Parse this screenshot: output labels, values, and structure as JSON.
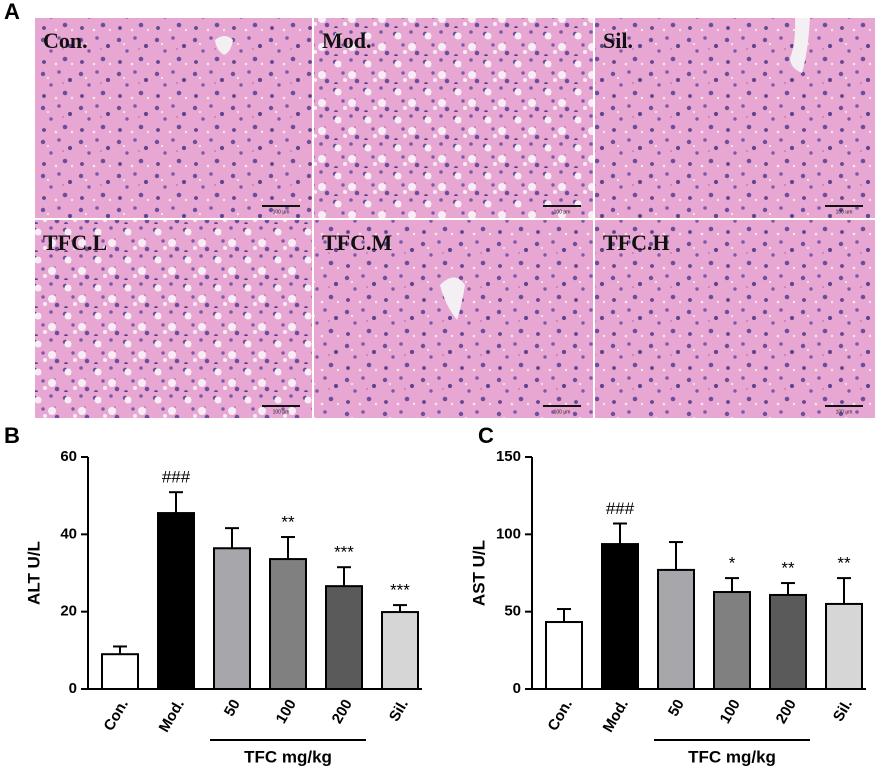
{
  "panel_a": {
    "label": "A",
    "scale_bar": "100 μm",
    "images": [
      "Con.",
      "Mod.",
      "Sil.",
      "TFC.L",
      "TFC.M",
      "TFC.H"
    ]
  },
  "chart_data": [
    {
      "type": "bar",
      "label": "B",
      "ylabel": "ALT  U/L",
      "categories": [
        "Con.",
        "Mod.",
        "50",
        "100",
        "200",
        "Sil."
      ],
      "values": [
        9,
        45.5,
        36.4,
        33.6,
        26.6,
        19.9
      ],
      "errors": [
        2,
        5.4,
        5.2,
        5.7,
        4.9,
        1.8
      ],
      "annotations": [
        null,
        "###",
        null,
        "**",
        "***",
        "***"
      ],
      "colors": [
        "#ffffff",
        "#000000",
        "#a6a6ab",
        "#808080",
        "#5a5a5a",
        "#d6d6d6"
      ],
      "ylim": [
        0,
        60
      ],
      "yticks": [
        0,
        20,
        40,
        60
      ],
      "group_label": "TFC mg/kg"
    },
    {
      "type": "bar",
      "label": "C",
      "ylabel": "AST  U/L",
      "categories": [
        "Con.",
        "Mod.",
        "50",
        "100",
        "200",
        "Sil."
      ],
      "values": [
        43.3,
        93.7,
        77,
        62.7,
        60.8,
        55
      ],
      "errors": [
        8.4,
        13.3,
        18,
        9,
        7.7,
        16.7
      ],
      "annotations": [
        null,
        "###",
        "",
        "*",
        "**",
        "**"
      ],
      "colors": [
        "#ffffff",
        "#000000",
        "#a6a6ab",
        "#808080",
        "#5a5a5a",
        "#d6d6d6"
      ],
      "ylim": [
        0,
        150
      ],
      "yticks": [
        0,
        50,
        100,
        150
      ],
      "group_label": "TFC mg/kg"
    }
  ]
}
